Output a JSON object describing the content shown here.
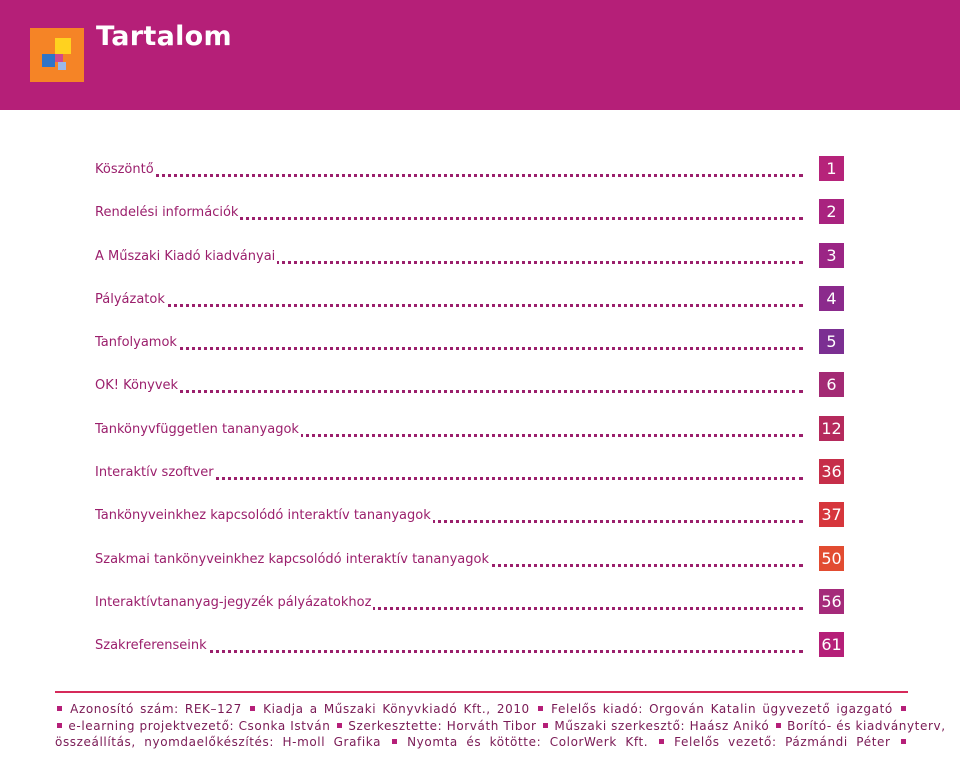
{
  "header": {
    "title": "Tartalom",
    "color": "#b51f78"
  },
  "toc": [
    {
      "label": "Köszöntő",
      "page": "1",
      "color": "#b6237a"
    },
    {
      "label": "Rendelési információk",
      "page": "2",
      "color": "#a9237f"
    },
    {
      "label": "A Műszaki Kiadó kiadványai",
      "page": "3",
      "color": "#9b2585"
    },
    {
      "label": "Pályázatok",
      "page": "4",
      "color": "#8b2a8c"
    },
    {
      "label": "Tanfolyamok",
      "page": "5",
      "color": "#7b2f92"
    },
    {
      "label": "OK! Könyvek",
      "page": "6",
      "color": "#a32a74"
    },
    {
      "label": "Tankönyvfüggetlen tananyagok",
      "page": "12",
      "color": "#b52a5c"
    },
    {
      "label": "Interaktív szoftver",
      "page": "36",
      "color": "#c62e49"
    },
    {
      "label": "Tankönyveinkhez kapcsolódó interaktív tananyagok",
      "page": "37",
      "color": "#d6363c"
    },
    {
      "label": "Szakmai tankönyveinkhez kapcsolódó interaktív tananyagok",
      "page": "50",
      "color": "#e24c31"
    },
    {
      "label": "Interaktívtananyag-jegyzék pályázatokhoz",
      "page": "56",
      "color": "#a52a7a"
    },
    {
      "label": "Szakreferenseink",
      "page": "61",
      "color": "#b51f78"
    }
  ],
  "footer": {
    "line1": [
      "Azonosító szám: REK–127",
      "Kiadja a Műszaki Könyvkiadó Kft., 2010",
      "Felelős kiadó: Orgován Katalin ügyvezető igazgató"
    ],
    "line2": [
      "e-learning projektvezető: Csonka István",
      "Szerkesztette: Horváth Tibor",
      "Műszaki szerkesztő: Haász Anikó",
      "Borító- és kiadványterv,"
    ],
    "line3": [
      "összeállítás, nyomdaelőkészítés: H-moll Grafika",
      "Nyomta és kötötte: ColorWerk Kft.",
      "Felelős vezető: Pázmándi Péter"
    ]
  }
}
